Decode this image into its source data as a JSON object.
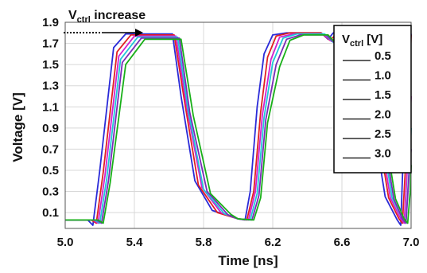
{
  "chart_data": {
    "type": "line",
    "xlabel": "Time [ns]",
    "ylabel": "Voltage [V]",
    "xlim": [
      5.0,
      7.0
    ],
    "ylim": [
      -0.05,
      1.9
    ],
    "x_ticks": [
      "5.0",
      "5.4",
      "5.8",
      "6.2",
      "6.6",
      "7.0"
    ],
    "x_tick_values": [
      5.0,
      5.4,
      5.8,
      6.2,
      6.6,
      7.0
    ],
    "y_ticks": [
      "1.9",
      "1.7",
      "1.5",
      "1.3",
      "1.1",
      "0.9",
      "0.7",
      "0.5",
      "0.3",
      "0.1"
    ],
    "y_tick_values": [
      1.9,
      1.7,
      1.5,
      1.3,
      1.1,
      0.9,
      0.7,
      0.5,
      0.3,
      0.1
    ],
    "grid": true,
    "annotation": {
      "v": "V",
      "sub": "ctrl",
      "text": " increase"
    },
    "legend": {
      "title_v": "V",
      "title_sub": "ctrl",
      "title_unit": " [V]",
      "placement": "top-right",
      "entries": [
        "0.5",
        "1.0",
        "1.5",
        "2.0",
        "2.5",
        "3.0"
      ]
    },
    "series": [
      {
        "label": "0.5",
        "color": "#2a2ad8",
        "x": [
          5.0,
          5.13,
          5.16,
          5.2,
          5.28,
          5.35,
          5.62,
          5.67,
          5.75,
          5.85,
          6.0,
          6.04,
          6.07,
          6.11,
          6.15,
          6.2,
          6.28,
          6.48,
          6.52,
          6.55,
          6.7,
          6.85,
          6.92,
          6.94,
          6.96,
          7.0
        ],
        "y": [
          0.03,
          0.03,
          -0.02,
          0.5,
          1.66,
          1.79,
          1.79,
          1.2,
          0.4,
          0.12,
          0.04,
          0.03,
          0.3,
          1.1,
          1.6,
          1.78,
          1.8,
          1.8,
          1.74,
          1.8,
          1.78,
          0.25,
          0.03,
          -0.02,
          0.9,
          1.79
        ]
      },
      {
        "label": "1.0",
        "color": "#e02020",
        "x": [
          5.0,
          5.15,
          5.18,
          5.22,
          5.3,
          5.38,
          5.63,
          5.69,
          5.77,
          5.88,
          6.0,
          6.05,
          6.09,
          6.13,
          6.17,
          6.22,
          6.3,
          6.48,
          6.53,
          6.57,
          6.72,
          6.87,
          6.93,
          6.95,
          6.98,
          7.0
        ],
        "y": [
          0.03,
          0.03,
          0.0,
          0.48,
          1.62,
          1.78,
          1.78,
          1.15,
          0.36,
          0.1,
          0.04,
          0.03,
          0.3,
          1.05,
          1.57,
          1.77,
          1.8,
          1.8,
          1.73,
          1.79,
          1.77,
          0.24,
          0.04,
          0.0,
          0.9,
          1.78
        ]
      },
      {
        "label": "1.5",
        "color": "#d020d0",
        "x": [
          5.0,
          5.16,
          5.19,
          5.23,
          5.31,
          5.4,
          5.64,
          5.7,
          5.79,
          5.9,
          6.0,
          6.06,
          6.1,
          6.14,
          6.19,
          6.24,
          6.32,
          6.49,
          6.54,
          6.58,
          6.73,
          6.88,
          6.94,
          6.96,
          6.99,
          7.0
        ],
        "y": [
          0.03,
          0.03,
          0.0,
          0.45,
          1.58,
          1.77,
          1.77,
          1.12,
          0.34,
          0.1,
          0.04,
          0.03,
          0.3,
          1.02,
          1.55,
          1.76,
          1.79,
          1.79,
          1.72,
          1.78,
          1.76,
          0.24,
          0.04,
          0.0,
          0.85,
          1.2
        ]
      },
      {
        "label": "2.0",
        "color": "#20c8d8",
        "x": [
          5.0,
          5.17,
          5.2,
          5.24,
          5.32,
          5.42,
          5.65,
          5.71,
          5.8,
          5.92,
          6.0,
          6.07,
          6.11,
          6.15,
          6.2,
          6.26,
          6.34,
          6.5,
          6.55,
          6.59,
          6.74,
          6.89,
          6.95,
          6.97,
          6.995,
          7.0
        ],
        "y": [
          0.03,
          0.03,
          0.0,
          0.42,
          1.55,
          1.76,
          1.76,
          1.08,
          0.32,
          0.09,
          0.04,
          0.03,
          0.28,
          1.0,
          1.52,
          1.75,
          1.79,
          1.79,
          1.71,
          1.78,
          1.76,
          0.24,
          0.04,
          0.0,
          0.7,
          0.9
        ]
      },
      {
        "label": "2.5",
        "color": "#7a2ab8",
        "x": [
          5.0,
          5.18,
          5.21,
          5.25,
          5.33,
          5.44,
          5.66,
          5.72,
          5.82,
          5.94,
          6.0,
          6.08,
          6.12,
          6.16,
          6.22,
          6.28,
          6.36,
          6.51,
          6.56,
          6.6,
          6.75,
          6.9,
          6.95,
          6.97,
          6.99,
          7.0
        ],
        "y": [
          0.03,
          0.03,
          0.0,
          0.4,
          1.52,
          1.75,
          1.75,
          1.05,
          0.3,
          0.08,
          0.04,
          0.03,
          0.26,
          0.98,
          1.5,
          1.74,
          1.78,
          1.78,
          1.7,
          1.77,
          1.75,
          0.23,
          0.04,
          0.0,
          0.5,
          0.7
        ]
      },
      {
        "label": "3.0",
        "color": "#18b018",
        "x": [
          5.0,
          5.19,
          5.22,
          5.26,
          5.35,
          5.46,
          5.67,
          5.74,
          5.84,
          5.96,
          6.0,
          6.09,
          6.13,
          6.17,
          6.24,
          6.3,
          6.38,
          6.52,
          6.57,
          6.61,
          6.76,
          6.91,
          6.96,
          6.98,
          6.995,
          7.0
        ],
        "y": [
          0.03,
          0.03,
          0.0,
          0.38,
          1.5,
          1.74,
          1.74,
          1.02,
          0.28,
          0.08,
          0.04,
          0.03,
          0.24,
          0.95,
          1.48,
          1.73,
          1.78,
          1.78,
          1.69,
          1.77,
          1.74,
          0.23,
          0.04,
          0.0,
          0.3,
          0.55
        ]
      }
    ]
  }
}
